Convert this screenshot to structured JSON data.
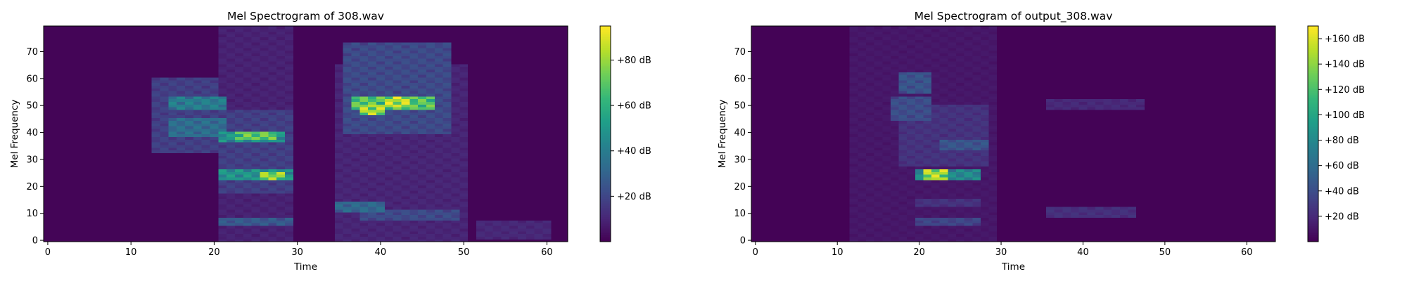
{
  "chart_data": [
    {
      "type": "heatmap",
      "title": "Mel Spectrogram of 308.wav",
      "xlabel": "Time",
      "ylabel": "Mel Frequency",
      "xlim": [
        -0.5,
        62.5
      ],
      "ylim": [
        -0.5,
        79.5
      ],
      "xticks": [
        0,
        10,
        20,
        30,
        40,
        50,
        60
      ],
      "yticks": [
        0,
        10,
        20,
        30,
        40,
        50,
        60,
        70
      ],
      "colorbar": {
        "vmin": 0,
        "vmax": 95,
        "ticks": [
          20,
          40,
          60,
          80
        ],
        "tick_labels": [
          "+20 dB",
          "+40 dB",
          "+60 dB",
          "+80 dB"
        ]
      },
      "colormap": "viridis",
      "n_frames": 63,
      "n_mels": 80,
      "blobs": [
        {
          "t0": 15,
          "t1": 21,
          "f0": 49,
          "f1": 53,
          "v": 45
        },
        {
          "t0": 15,
          "t1": 21,
          "f0": 39,
          "f1": 45,
          "v": 38
        },
        {
          "t0": 13,
          "t1": 20,
          "f0": 33,
          "f1": 60,
          "v": 20
        },
        {
          "t0": 21,
          "t1": 28,
          "f0": 37,
          "f1": 40,
          "v": 55
        },
        {
          "t0": 23,
          "t1": 27,
          "f0": 38,
          "f1": 40,
          "v": 80
        },
        {
          "t0": 21,
          "t1": 29,
          "f0": 23,
          "f1": 26,
          "v": 55
        },
        {
          "t0": 26,
          "t1": 28,
          "f0": 23,
          "f1": 25,
          "v": 88
        },
        {
          "t0": 21,
          "t1": 29,
          "f0": 18,
          "f1": 48,
          "v": 20
        },
        {
          "t0": 21,
          "t1": 29,
          "f0": 6,
          "f1": 8,
          "v": 30
        },
        {
          "t0": 21,
          "t1": 29,
          "f0": 0,
          "f1": 79,
          "v": 10
        },
        {
          "t0": 37,
          "t1": 46,
          "f0": 49,
          "f1": 53,
          "v": 78
        },
        {
          "t0": 38,
          "t1": 40,
          "f0": 47,
          "f1": 50,
          "v": 92
        },
        {
          "t0": 41,
          "t1": 43,
          "f0": 50,
          "f1": 53,
          "v": 95
        },
        {
          "t0": 36,
          "t1": 48,
          "f0": 40,
          "f1": 73,
          "v": 24
        },
        {
          "t0": 35,
          "t1": 40,
          "f0": 11,
          "f1": 14,
          "v": 36
        },
        {
          "t0": 38,
          "t1": 49,
          "f0": 8,
          "f1": 11,
          "v": 24
        },
        {
          "t0": 35,
          "t1": 50,
          "f0": 0,
          "f1": 65,
          "v": 11
        },
        {
          "t0": 52,
          "t1": 60,
          "f0": 1,
          "f1": 7,
          "v": 12
        }
      ]
    },
    {
      "type": "heatmap",
      "title": "Mel Spectrogram of output_308.wav",
      "xlabel": "Time",
      "ylabel": "Mel Frequency",
      "xlim": [
        -0.5,
        63.5
      ],
      "ylim": [
        -0.5,
        79.5
      ],
      "xticks": [
        0,
        10,
        20,
        30,
        40,
        50,
        60
      ],
      "yticks": [
        0,
        10,
        20,
        30,
        40,
        50,
        60,
        70
      ],
      "colorbar": {
        "vmin": 0,
        "vmax": 170,
        "ticks": [
          20,
          40,
          60,
          80,
          100,
          120,
          140,
          160
        ],
        "tick_labels": [
          "+20 dB",
          "+40 dB",
          "+60 dB",
          "+80 dB",
          "+100 dB",
          "+120 dB",
          "+140 dB",
          "+160 dB"
        ]
      },
      "colormap": "viridis",
      "n_frames": 64,
      "n_mels": 80,
      "blobs": [
        {
          "t0": 21,
          "t1": 23,
          "f0": 23,
          "f1": 26,
          "v": 165
        },
        {
          "t0": 20,
          "t1": 27,
          "f0": 23,
          "f1": 26,
          "v": 90
        },
        {
          "t0": 18,
          "t1": 21,
          "f0": 55,
          "f1": 62,
          "v": 50
        },
        {
          "t0": 17,
          "t1": 21,
          "f0": 45,
          "f1": 53,
          "v": 45
        },
        {
          "t0": 18,
          "t1": 28,
          "f0": 28,
          "f1": 50,
          "v": 28
        },
        {
          "t0": 23,
          "t1": 28,
          "f0": 34,
          "f1": 37,
          "v": 50
        },
        {
          "t0": 20,
          "t1": 27,
          "f0": 6,
          "f1": 8,
          "v": 40
        },
        {
          "t0": 20,
          "t1": 27,
          "f0": 13,
          "f1": 15,
          "v": 28
        },
        {
          "t0": 12,
          "t1": 29,
          "f0": 0,
          "f1": 79,
          "v": 12
        },
        {
          "t0": 36,
          "t1": 47,
          "f0": 49,
          "f1": 52,
          "v": 22
        },
        {
          "t0": 36,
          "t1": 46,
          "f0": 9,
          "f1": 12,
          "v": 26
        }
      ]
    }
  ]
}
